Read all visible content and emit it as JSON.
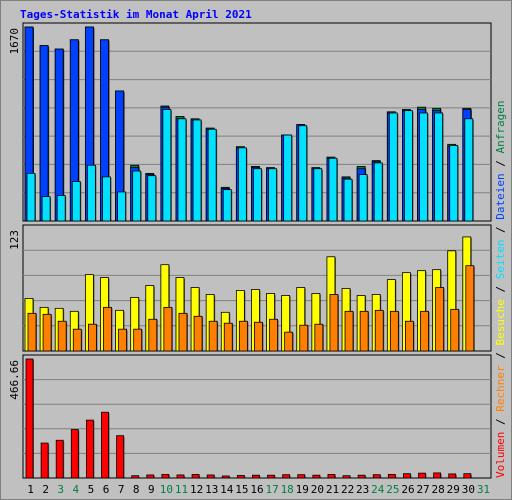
{
  "title": "Tages-Statistik im Monat April 2021",
  "colors": {
    "anfragen": "#008040",
    "dateien": "#0040ff",
    "seiten": "#00e0ff",
    "besuche": "#ffff00",
    "rechner": "#ff8000",
    "volumen": "#ff0000",
    "weekend_label": "#008040",
    "weekday_label": "#000000"
  },
  "chart_data": [
    {
      "type": "bar",
      "name": "top",
      "y_tick_label": "1670",
      "ylim": [
        0,
        1670
      ],
      "categories": [
        "1",
        "2",
        "3",
        "4",
        "5",
        "6",
        "7",
        "8",
        "9",
        "10",
        "11",
        "12",
        "13",
        "14",
        "15",
        "16",
        "17",
        "18",
        "19",
        "20",
        "21",
        "22",
        "23",
        "24",
        "25",
        "26",
        "27",
        "28",
        "29",
        "30",
        "31"
      ],
      "weekend": [
        "3",
        "4",
        "10",
        "11",
        "17",
        "18",
        "24",
        "25",
        "31"
      ],
      "series": [
        {
          "name": "Anfragen",
          "values": [
            1670,
            1510,
            1480,
            1560,
            1670,
            1560,
            1120,
            480,
            410,
            990,
            900,
            880,
            800,
            290,
            640,
            470,
            460,
            740,
            830,
            460,
            550,
            380,
            470,
            520,
            940,
            960,
            980,
            970,
            660,
            970,
            0
          ]
        },
        {
          "name": "Dateien",
          "values": [
            1670,
            1510,
            1480,
            1560,
            1670,
            1560,
            1120,
            460,
            400,
            980,
            880,
            870,
            790,
            280,
            630,
            460,
            450,
            740,
            830,
            450,
            540,
            370,
            450,
            510,
            930,
            950,
            960,
            950,
            640,
            960,
            0
          ]
        },
        {
          "name": "Seiten",
          "values": [
            410,
            210,
            220,
            340,
            480,
            380,
            250,
            430,
            390,
            960,
            880,
            870,
            790,
            270,
            630,
            450,
            450,
            740,
            820,
            450,
            540,
            360,
            400,
            500,
            930,
            950,
            930,
            930,
            650,
            880,
            0
          ]
        }
      ]
    },
    {
      "type": "bar",
      "name": "middle",
      "y_tick_label": "123",
      "ylim": [
        0,
        123
      ],
      "categories": [
        "1",
        "2",
        "3",
        "4",
        "5",
        "6",
        "7",
        "8",
        "9",
        "10",
        "11",
        "12",
        "13",
        "14",
        "15",
        "16",
        "17",
        "18",
        "19",
        "20",
        "21",
        "22",
        "23",
        "24",
        "25",
        "26",
        "27",
        "28",
        "29",
        "30",
        "31"
      ],
      "series": [
        {
          "name": "Besuche",
          "values": [
            53,
            44,
            43,
            40,
            77,
            74,
            41,
            54,
            66,
            87,
            74,
            64,
            57,
            39,
            61,
            62,
            58,
            56,
            64,
            58,
            95,
            63,
            56,
            57,
            72,
            79,
            81,
            82,
            101,
            115,
            0
          ]
        },
        {
          "name": "Rechner",
          "values": [
            38,
            37,
            30,
            22,
            27,
            44,
            22,
            22,
            32,
            44,
            38,
            35,
            30,
            28,
            30,
            29,
            32,
            19,
            26,
            27,
            57,
            40,
            40,
            41,
            40,
            30,
            40,
            64,
            42,
            86,
            0
          ]
        }
      ]
    },
    {
      "type": "bar",
      "name": "bottom",
      "y_tick_label": "466.66",
      "ylim": [
        0,
        466.66
      ],
      "categories": [
        "1",
        "2",
        "3",
        "4",
        "5",
        "6",
        "7",
        "8",
        "9",
        "10",
        "11",
        "12",
        "13",
        "14",
        "15",
        "16",
        "17",
        "18",
        "19",
        "20",
        "21",
        "22",
        "23",
        "24",
        "25",
        "26",
        "27",
        "28",
        "29",
        "30",
        "31"
      ],
      "series": [
        {
          "name": "Volumen",
          "values": [
            466.66,
            137,
            148,
            190,
            227,
            258,
            166,
            9,
            12,
            14,
            12,
            14,
            12,
            8,
            10,
            11,
            11,
            13,
            13,
            11,
            14,
            9,
            11,
            13,
            14,
            17,
            19,
            20,
            16,
            17,
            0
          ]
        }
      ]
    }
  ],
  "right_legend": [
    {
      "text": "Anfragen",
      "color_key": "anfragen"
    },
    {
      "text": "/",
      "color_key": "weekday_label"
    },
    {
      "text": "Dateien",
      "color_key": "dateien"
    },
    {
      "text": "/",
      "color_key": "weekday_label"
    },
    {
      "text": "Seiten",
      "color_key": "seiten"
    },
    {
      "text": "/",
      "color_key": "weekday_label"
    },
    {
      "text": "Besuche",
      "color_key": "besuche"
    },
    {
      "text": "/",
      "color_key": "weekday_label"
    },
    {
      "text": "Rechner",
      "color_key": "rechner"
    },
    {
      "text": "/",
      "color_key": "weekday_label"
    },
    {
      "text": "Volumen",
      "color_key": "volumen"
    }
  ]
}
